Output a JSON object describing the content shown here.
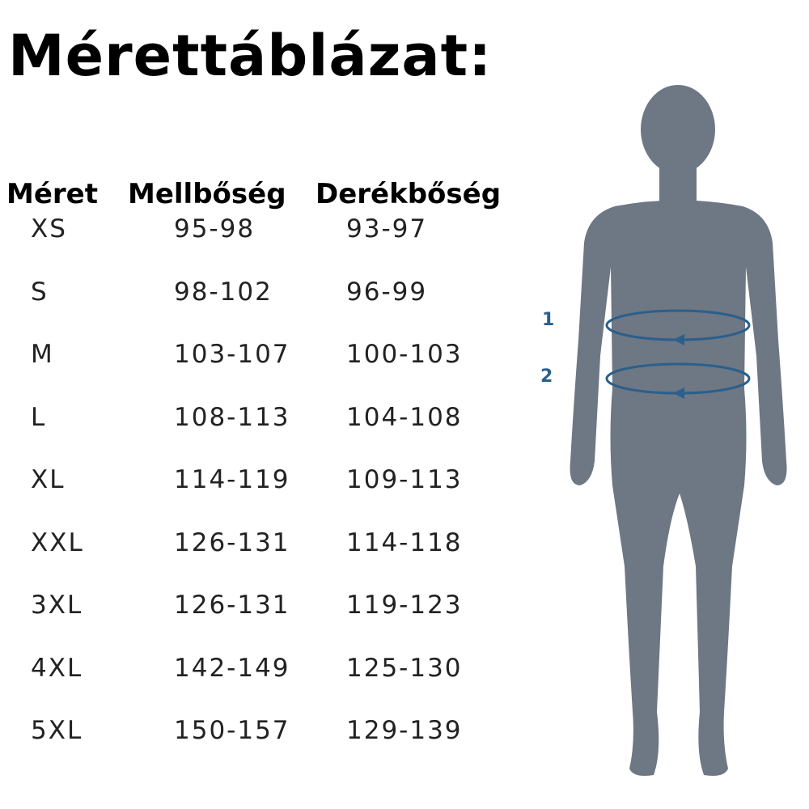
{
  "title": "Mérettáblázat:",
  "table": {
    "headers": [
      "Méret",
      "Mellbőség",
      "Derékbőség"
    ],
    "rows": [
      [
        "XS",
        "95-98",
        "93-97"
      ],
      [
        "S",
        "98-102",
        "96-99"
      ],
      [
        "M",
        "103-107",
        "100-103"
      ],
      [
        "L",
        "108-113",
        "104-108"
      ],
      [
        "XL",
        "114-119",
        "109-113"
      ],
      [
        "XXL",
        "126-131",
        "114-118"
      ],
      [
        "3XL",
        "126-131",
        "119-123"
      ],
      [
        "4XL",
        "142-149",
        "125-130"
      ],
      [
        "5XL",
        "150-157",
        "129-139"
      ]
    ]
  },
  "figure": {
    "markers": [
      "1",
      "2"
    ],
    "silhouette_color": "#6e7784",
    "measure_color": "#2b5f8c"
  }
}
